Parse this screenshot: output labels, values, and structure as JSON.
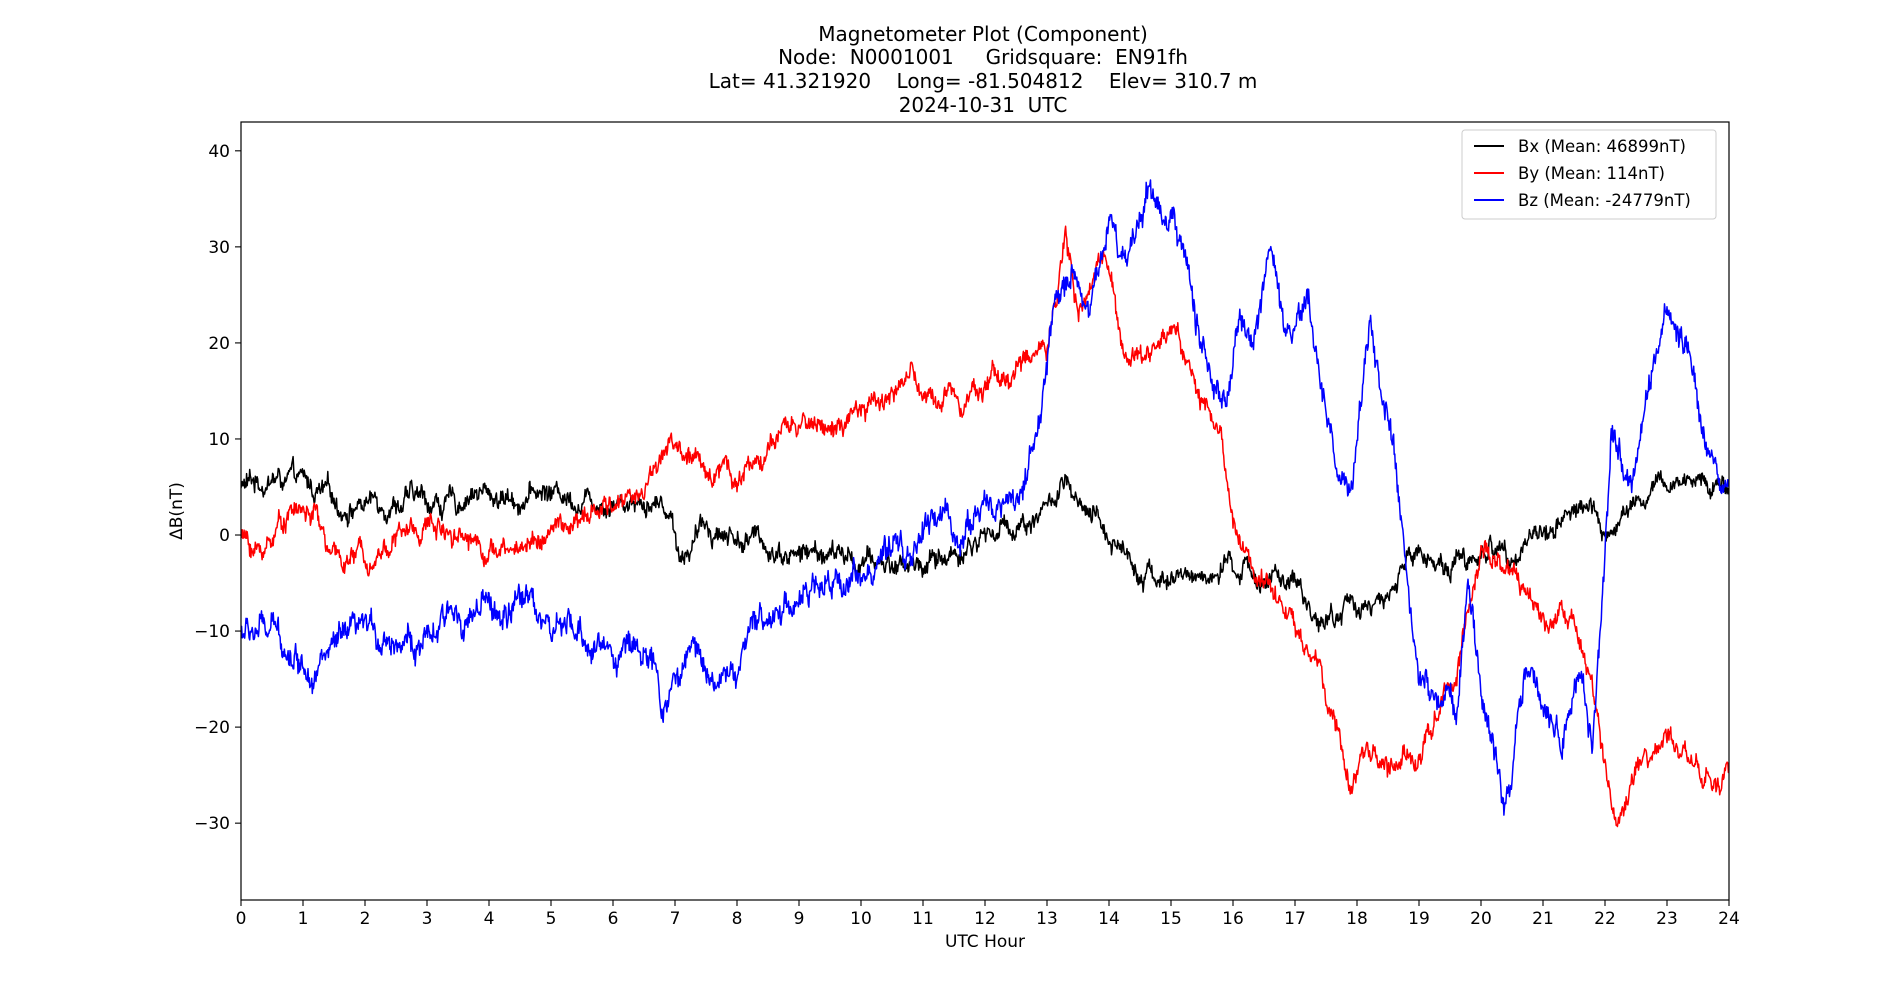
{
  "chart_data": {
    "type": "line",
    "title_lines": [
      "Magnetometer Plot (Component)",
      "Node:  N0001001     Gridsquare:  EN91fh",
      "Lat= 41.321920    Long= -81.504812    Elev= 310.7 m",
      "2024-10-31  UTC"
    ],
    "xlabel": "UTC Hour",
    "ylabel": "ΔB(nT)",
    "xlim": [
      0,
      24
    ],
    "ylim": [
      -38,
      43
    ],
    "xticks": [
      0,
      1,
      2,
      3,
      4,
      5,
      6,
      7,
      8,
      9,
      10,
      11,
      12,
      13,
      14,
      15,
      16,
      17,
      18,
      19,
      20,
      21,
      22,
      23,
      24
    ],
    "yticks": [
      -30,
      -20,
      -10,
      0,
      10,
      20,
      30,
      40
    ],
    "ytick_labels": [
      "−30",
      "−20",
      "−10",
      "0",
      "10",
      "20",
      "30",
      "40"
    ],
    "grid": false,
    "legend_position": "top-right",
    "series": [
      {
        "name": "Bx (Mean: 46899nT)",
        "color": "#000000",
        "noise": 1.2,
        "x": [
          0,
          0.5,
          1,
          1.3,
          1.6,
          2,
          2.5,
          3,
          3.5,
          3.7,
          4,
          4.5,
          5,
          5.5,
          6,
          6.5,
          6.9,
          7.1,
          7.5,
          8,
          8.5,
          9,
          9.5,
          10,
          10.5,
          11,
          11.5,
          12,
          12.5,
          13,
          13.3,
          13.5,
          14,
          14.5,
          15,
          15.5,
          16,
          16.5,
          17,
          17.3,
          17.6,
          17.9,
          18.2,
          18.5,
          18.7,
          19,
          19.5,
          20,
          20.5,
          21,
          21.5,
          21.8,
          22,
          22.5,
          23,
          23.5,
          24
        ],
        "y": [
          5,
          6,
          5,
          4,
          3,
          3.5,
          4,
          3.5,
          3,
          5,
          4,
          4,
          4.5,
          4,
          4,
          4,
          3,
          -2,
          1,
          0,
          -1,
          -2,
          -2,
          -3,
          -3,
          -3,
          -2,
          0,
          1,
          3,
          5,
          2,
          0,
          -3,
          -5,
          -4,
          -4,
          -4,
          -6,
          -8,
          -9,
          -7,
          -7,
          -8,
          -3,
          -2,
          -3,
          -2,
          -1,
          0,
          3,
          2,
          0,
          3,
          5,
          6,
          5
        ]
      },
      {
        "name": "By (Mean: 114nT)",
        "color": "#ff0000",
        "noise": 1.2,
        "x": [
          0,
          0.3,
          0.8,
          1.2,
          1.5,
          2,
          2.5,
          3,
          3.5,
          4,
          4.3,
          4.8,
          5.5,
          6,
          6.5,
          6.9,
          7.2,
          7.5,
          7.8,
          8,
          8.5,
          9,
          9.3,
          9.6,
          10,
          10.5,
          10.8,
          11,
          11.5,
          12,
          12.5,
          13,
          13.3,
          13.5,
          14,
          14.2,
          14.5,
          14.8,
          15,
          15.3,
          15.6,
          15.8,
          16,
          16.3,
          16.7,
          17,
          17.4,
          17.6,
          17.9,
          18.1,
          18.5,
          19,
          19.5,
          20,
          20.5,
          21,
          21.5,
          21.8,
          22,
          22.2,
          22.5,
          23,
          23.5,
          23.8,
          24
        ],
        "y": [
          0,
          -2,
          3,
          2,
          -3,
          -2,
          0,
          1,
          1,
          -1,
          -2,
          0,
          1,
          3,
          5,
          10,
          8,
          6,
          8,
          6,
          9,
          11,
          12,
          11,
          12,
          15,
          17,
          14,
          15,
          16,
          17,
          20,
          32,
          22,
          30,
          20,
          18,
          20,
          22,
          18,
          12,
          10,
          1,
          -3,
          -5,
          -10,
          -14,
          -20,
          -27,
          -22,
          -24,
          -23,
          -16,
          -2,
          -5,
          -9,
          -7,
          -16,
          -25,
          -32,
          -25,
          -22,
          -23,
          -27,
          -25
        ]
      },
      {
        "name": "Bz (Mean: -24779nT)",
        "color": "#0000ff",
        "noise": 1.6,
        "x": [
          0,
          0.3,
          0.7,
          1,
          1.5,
          2,
          2.5,
          3,
          3.5,
          4,
          4.3,
          4.7,
          5,
          5.5,
          6,
          6.5,
          6.8,
          7.3,
          7.8,
          8,
          8.5,
          9,
          9.5,
          10,
          10.5,
          10.8,
          11,
          11.3,
          11.6,
          12,
          12.3,
          12.6,
          12.9,
          13.1,
          13.4,
          13.7,
          14,
          14.3,
          14.6,
          15,
          15.3,
          15.6,
          15.9,
          16.1,
          16.4,
          16.6,
          16.9,
          17.2,
          17.4,
          17.7,
          17.9,
          18.2,
          18.5,
          18.8,
          19,
          19.3,
          19.6,
          19.8,
          20.1,
          20.4,
          20.7,
          21,
          21.3,
          21.6,
          21.8,
          22.1,
          22.4,
          22.7,
          23,
          23.3,
          23.6,
          23.9,
          24
        ],
        "y": [
          -10,
          -10,
          -11,
          -13,
          -12,
          -11,
          -10,
          -12,
          -8,
          -8,
          -9,
          -6,
          -10,
          -11,
          -12,
          -11,
          -18,
          -12,
          -15,
          -14,
          -8,
          -6,
          -6,
          -3,
          -3,
          -2,
          0,
          2,
          0,
          3,
          3,
          5,
          12,
          22,
          28,
          24,
          33,
          29,
          36,
          34,
          26,
          18,
          12,
          22,
          20,
          28,
          18,
          24,
          17,
          6,
          4,
          20,
          12,
          -5,
          -15,
          -17,
          -18,
          -5,
          -20,
          -28,
          -12,
          -18,
          -20,
          -15,
          -22,
          10,
          4,
          15,
          22,
          18,
          13,
          5,
          5
        ]
      }
    ]
  }
}
